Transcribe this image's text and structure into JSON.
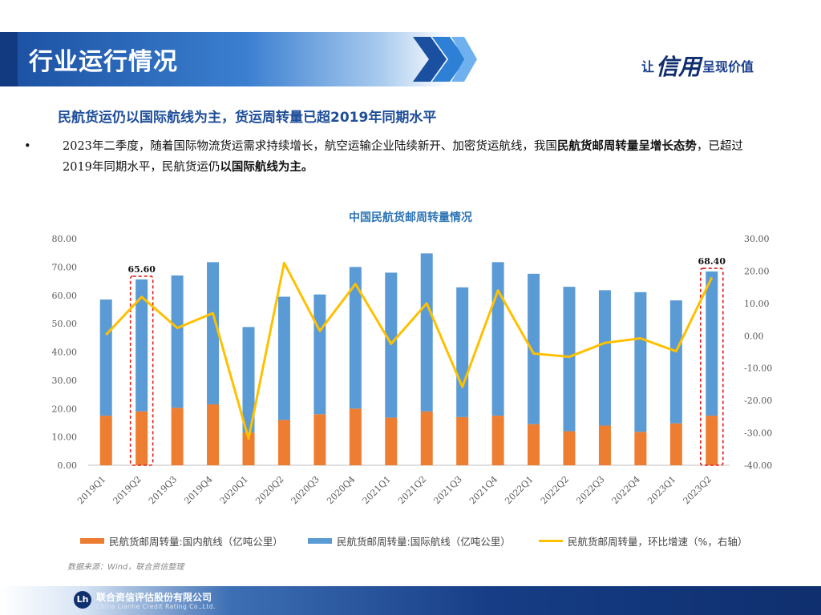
{
  "header": {
    "title": "行业运行情况"
  },
  "slogan": {
    "pre": "让",
    "big": "信用",
    "post": "呈现价值"
  },
  "subtitle": "民航货运仍以国际航线为主，货运周转量已超2019年同期水平",
  "bullet": {
    "dot": "•",
    "t1": "2023年二季度，随着国际物流货运需求持续增长，航空运输企业陆续新开、加密货运航线，我国",
    "b1": "民航货邮周转量呈增长态势",
    "t2": "，已超过2019年同期水平，民航货运仍",
    "b2": "以国际航线为主。"
  },
  "source": "数据来源：Wind，联合资信整理",
  "footer": {
    "name": "联合资信评估股份有限公司",
    "en": "China Lianhe Credit Rating Co.,Ltd."
  },
  "colors": {
    "domestic": "#ed7d31",
    "international": "#5b9bd5",
    "growth": "#ffc000",
    "highlight": "#e0201b"
  },
  "chart_data": {
    "type": "bar",
    "title": "中国民航货邮周转量情况",
    "categories": [
      "2019Q1",
      "2019Q2",
      "2019Q3",
      "2019Q4",
      "2020Q1",
      "2020Q2",
      "2020Q3",
      "2020Q4",
      "2021Q1",
      "2021Q2",
      "2021Q3",
      "2021Q4",
      "2022Q1",
      "2022Q2",
      "2022Q3",
      "2022Q4",
      "2023Q1",
      "2023Q2"
    ],
    "stacked": true,
    "series": [
      {
        "name": "民航货邮周转量:国内航线（亿吨公里）",
        "type": "bar",
        "axis": "left",
        "values": [
          17.5,
          19.0,
          20.3,
          21.5,
          11.5,
          16.0,
          18.0,
          20.0,
          16.8,
          19.0,
          17.0,
          17.5,
          14.5,
          12.0,
          14.0,
          11.8,
          14.8,
          17.5
        ]
      },
      {
        "name": "民航货邮周转量:国际航线（亿吨公里）",
        "type": "bar",
        "axis": "left",
        "values": [
          41.0,
          46.6,
          46.7,
          50.2,
          37.3,
          43.5,
          42.3,
          50.0,
          51.2,
          55.8,
          45.8,
          54.2,
          53.1,
          51.0,
          47.8,
          49.3,
          43.4,
          50.9
        ]
      },
      {
        "name": "民航货邮周转量，环比增速（%，右轴）",
        "type": "line",
        "axis": "right",
        "values": [
          0.3,
          12.0,
          2.4,
          7.0,
          -31.8,
          22.5,
          1.5,
          16.0,
          -2.5,
          10.0,
          -15.8,
          14.0,
          -5.5,
          -6.5,
          -2.2,
          -0.8,
          -4.8,
          18.0
        ]
      }
    ],
    "ylim": [
      0,
      80
    ],
    "y_ticks": [
      "0.00",
      "10.00",
      "20.00",
      "30.00",
      "40.00",
      "50.00",
      "60.00",
      "70.00",
      "80.00"
    ],
    "y2lim": [
      -40,
      30
    ],
    "y2_ticks": [
      "-40.00",
      "-30.00",
      "-20.00",
      "-10.00",
      "0.00",
      "10.00",
      "20.00",
      "30.00"
    ],
    "annotations": [
      {
        "category": "2019Q2",
        "label": "65.60",
        "value": 65.6
      },
      {
        "category": "2023Q2",
        "label": "68.40",
        "value": 68.4
      }
    ],
    "grid": false,
    "legend_position": "bottom"
  }
}
